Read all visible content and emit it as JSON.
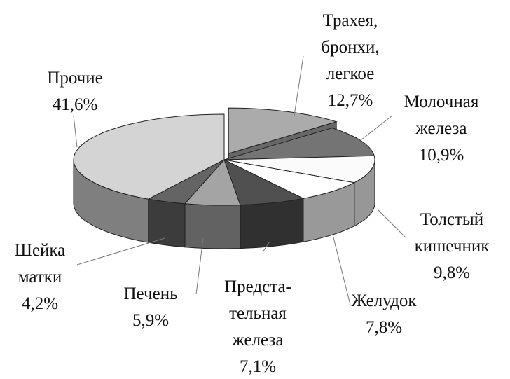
{
  "chart_data": {
    "type": "pie",
    "categories": [
      "Трахея,\nбронхи,\nлегкое",
      "Молочная\nжелеза",
      "Толстый\nкишечник",
      "Желудок",
      "Предста-\nтельная\nжелеза",
      "Печень",
      "Шейка\nматки",
      "Прочие"
    ],
    "values": [
      12.7,
      10.9,
      9.8,
      7.8,
      7.1,
      5.9,
      4.2,
      41.6
    ],
    "value_labels": [
      "12,7%",
      "10,9%",
      "9,8%",
      "7,8%",
      "7,1%",
      "5,9%",
      "4,2%",
      "41,6%"
    ],
    "colors": [
      "#ababab",
      "#747474",
      "#fbfbfb",
      "#ffffff",
      "#505050",
      "#a4a4a4",
      "#646464",
      "#d4d4d4"
    ]
  }
}
